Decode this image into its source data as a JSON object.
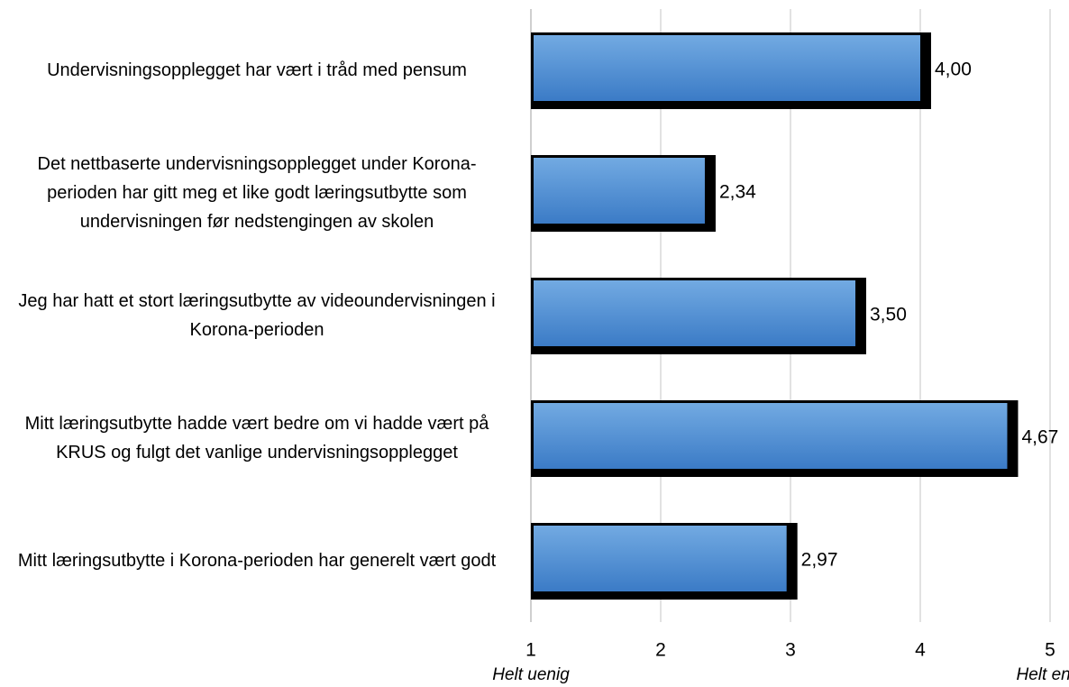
{
  "chart_data": {
    "type": "bar",
    "orientation": "horizontal",
    "categories": [
      "Undervisningsopplegget har vært i tråd med pensum",
      "Det nettbaserte undervisningsopplegget under Korona-perioden har gitt meg et like godt læringsutbytte som undervisningen før nedstengingen av skolen",
      "Jeg har hatt et stort læringsutbytte av videoundervisningen i Korona-perioden",
      "Mitt læringsutbytte hadde vært bedre om vi hadde vært på KRUS og fulgt det vanlige undervisningsopplegget",
      "Mitt læringsutbytte i Korona-perioden har generelt vært godt"
    ],
    "values": [
      4.0,
      2.34,
      3.5,
      4.67,
      2.97
    ],
    "value_labels": [
      "4,00",
      "2,34",
      "3,50",
      "4,67",
      "2,97"
    ],
    "color": "#4a8ad4",
    "xlim": [
      1,
      5
    ],
    "xticks": [
      1,
      2,
      3,
      4,
      5
    ],
    "grid": true,
    "annotations": [
      "Helt uenig",
      "Helt enig"
    ]
  }
}
